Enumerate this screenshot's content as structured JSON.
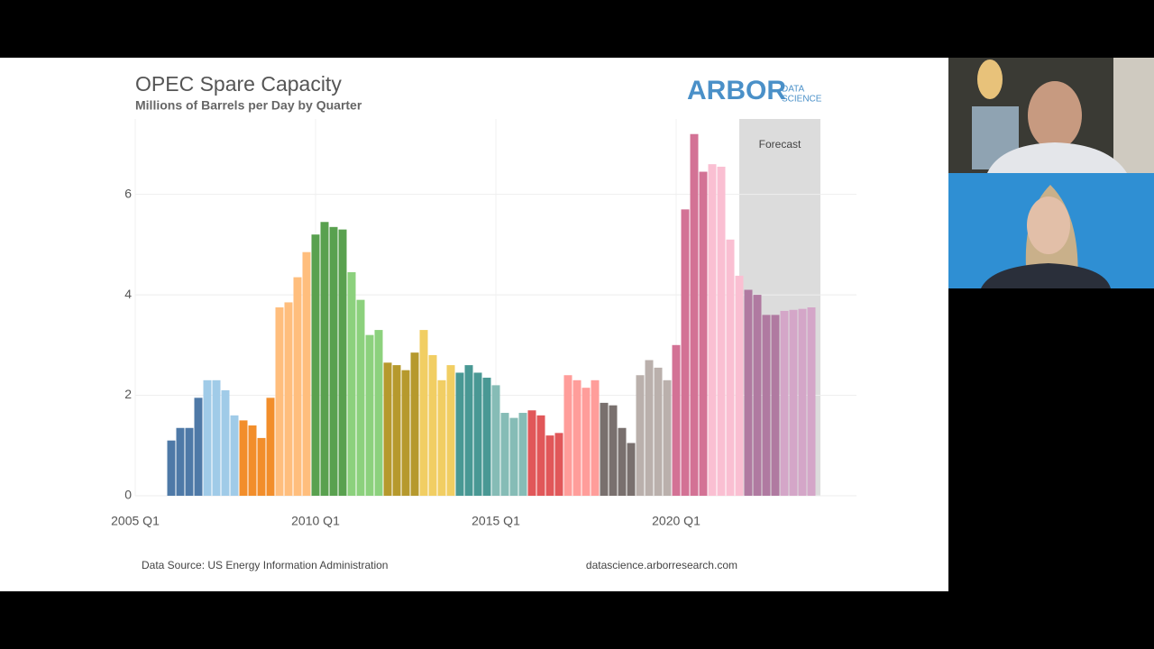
{
  "chart_data": {
    "type": "bar",
    "title": "OPEC Spare Capacity",
    "subtitle": "Millions of Barrels per Day by Quarter",
    "logo": {
      "name": "ARBOR",
      "tagline": [
        "DATA",
        "SCIENCE"
      ]
    },
    "source": "Data Source: US Energy Information Administration",
    "website": "datascience.arborresearch.com",
    "forecast": {
      "label": "Forecast",
      "range": [
        2021.75,
        2024
      ]
    },
    "x": [
      2006,
      2006.25,
      2006.5,
      2006.75,
      2007,
      2007.25,
      2007.5,
      2007.75,
      2008,
      2008.25,
      2008.5,
      2008.75,
      2009,
      2009.25,
      2009.5,
      2009.75,
      2010,
      2010.25,
      2010.5,
      2010.75,
      2011,
      2011.25,
      2011.5,
      2011.75,
      2012,
      2012.25,
      2012.5,
      2012.75,
      2013,
      2013.25,
      2013.5,
      2013.75,
      2014,
      2014.25,
      2014.5,
      2014.75,
      2015,
      2015.25,
      2015.5,
      2015.75,
      2016,
      2016.25,
      2016.5,
      2016.75,
      2017,
      2017.25,
      2017.5,
      2017.75,
      2018,
      2018.25,
      2018.5,
      2018.75,
      2019,
      2019.25,
      2019.5,
      2019.75,
      2020,
      2020.25,
      2020.5,
      2020.75,
      2021,
      2021.25,
      2021.5,
      2021.75,
      2022,
      2022.25,
      2022.5,
      2022.75,
      2023,
      2023.25,
      2023.5,
      2023.75
    ],
    "values": [
      1.1,
      1.35,
      1.35,
      1.95,
      2.3,
      2.3,
      2.1,
      1.6,
      1.5,
      1.4,
      1.15,
      1.95,
      3.75,
      3.85,
      4.35,
      4.85,
      5.2,
      5.45,
      5.35,
      5.3,
      4.45,
      3.9,
      3.2,
      3.3,
      2.65,
      2.6,
      2.5,
      2.85,
      3.3,
      2.8,
      2.3,
      2.6,
      2.45,
      2.6,
      2.45,
      2.35,
      2.2,
      1.65,
      1.55,
      1.65,
      1.7,
      1.6,
      1.2,
      1.25,
      2.4,
      2.3,
      2.15,
      2.3,
      1.85,
      1.8,
      1.35,
      1.05,
      2.4,
      2.7,
      2.55,
      2.3,
      3.0,
      5.7,
      7.2,
      6.45,
      6.6,
      6.55,
      5.1,
      4.38,
      4.1,
      4.0,
      3.6,
      3.6,
      3.68,
      3.7,
      3.72,
      3.75
    ],
    "colors": [
      "#4e79a7",
      "#4e79a7",
      "#4e79a7",
      "#4e79a7",
      "#a0cbe8",
      "#a0cbe8",
      "#a0cbe8",
      "#a0cbe8",
      "#f28e2b",
      "#f28e2b",
      "#f28e2b",
      "#f28e2b",
      "#ffbe7d",
      "#ffbe7d",
      "#ffbe7d",
      "#ffbe7d",
      "#59a14f",
      "#59a14f",
      "#59a14f",
      "#59a14f",
      "#8cd17d",
      "#8cd17d",
      "#8cd17d",
      "#8cd17d",
      "#b6992d",
      "#b6992d",
      "#b6992d",
      "#b6992d",
      "#f1ce63",
      "#f1ce63",
      "#f1ce63",
      "#f1ce63",
      "#499894",
      "#499894",
      "#499894",
      "#499894",
      "#86bcb6",
      "#86bcb6",
      "#86bcb6",
      "#86bcb6",
      "#e15759",
      "#e15759",
      "#e15759",
      "#e15759",
      "#ff9d9a",
      "#ff9d9a",
      "#ff9d9a",
      "#ff9d9a",
      "#79706e",
      "#79706e",
      "#79706e",
      "#79706e",
      "#bab0ac",
      "#bab0ac",
      "#bab0ac",
      "#bab0ac",
      "#d37295",
      "#d37295",
      "#d37295",
      "#d37295",
      "#fabfd2",
      "#fabfd2",
      "#fabfd2",
      "#fabfd2",
      "#b07aa1",
      "#b07aa1",
      "#b07aa1",
      "#b07aa1",
      "#d4a6c8",
      "#d4a6c8",
      "#d4a6c8",
      "#d4a6c8"
    ],
    "xlim": [
      2005,
      2025
    ],
    "xticks": [
      {
        "value": 2005,
        "label": "2005 Q1"
      },
      {
        "value": 2010,
        "label": "2010 Q1"
      },
      {
        "value": 2015,
        "label": "2015 Q1"
      },
      {
        "value": 2020,
        "label": "2020 Q1"
      }
    ],
    "ylim": [
      0,
      7.5
    ],
    "yticks": [
      0,
      2,
      4,
      6
    ],
    "grid": true
  }
}
